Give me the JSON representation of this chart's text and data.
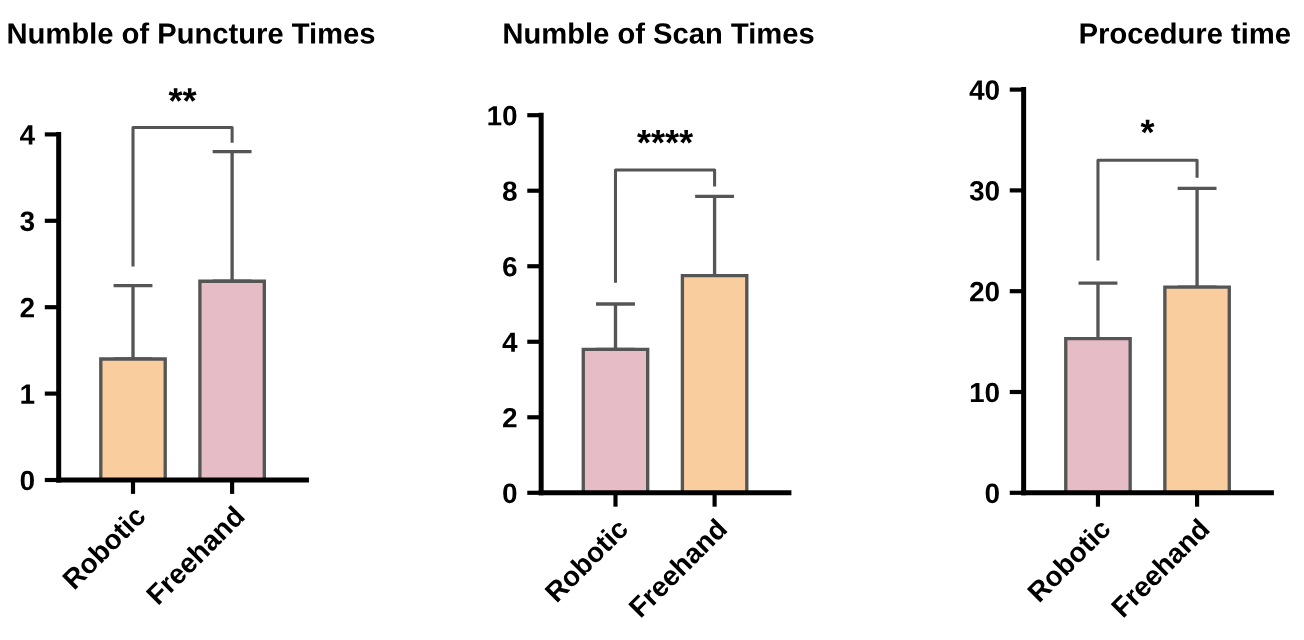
{
  "chart_data": [
    {
      "type": "bar",
      "title": "Numble of Puncture Times",
      "categories": [
        "Robotic",
        "Freehand"
      ],
      "values": [
        1.4,
        2.3
      ],
      "colors": [
        "#f9cd9e",
        "#e6bcc6"
      ],
      "errors": [
        [
          1.4,
          2.25
        ],
        [
          2.3,
          3.8
        ]
      ],
      "ylim": [
        0,
        4
      ],
      "yticks": [
        0,
        1,
        2,
        3,
        4
      ],
      "annotations": [
        "**"
      ],
      "grid": false,
      "legend": false
    },
    {
      "type": "bar",
      "title": "Numble of Scan Times",
      "categories": [
        "Robotic",
        "Freehand"
      ],
      "values": [
        3.8,
        5.75
      ],
      "colors": [
        "#e6bcc6",
        "#f9cd9e"
      ],
      "errors": [
        [
          3.8,
          5.0
        ],
        [
          5.75,
          7.85
        ]
      ],
      "ylim": [
        0,
        10
      ],
      "yticks": [
        0,
        2,
        4,
        6,
        8,
        10
      ],
      "annotations": [
        "****"
      ],
      "grid": false,
      "legend": false
    },
    {
      "type": "bar",
      "title": "Procedure time",
      "categories": [
        "Robotic",
        "Freehand"
      ],
      "values": [
        15.3,
        20.4
      ],
      "colors": [
        "#e6bcc6",
        "#f9cd9e"
      ],
      "errors": [
        [
          15.3,
          20.8
        ],
        [
          20.4,
          30.2
        ]
      ],
      "ylim": [
        0,
        40
      ],
      "yticks": [
        0,
        10,
        20,
        30,
        40
      ],
      "annotations": [
        "*"
      ],
      "grid": false,
      "legend": false
    }
  ]
}
